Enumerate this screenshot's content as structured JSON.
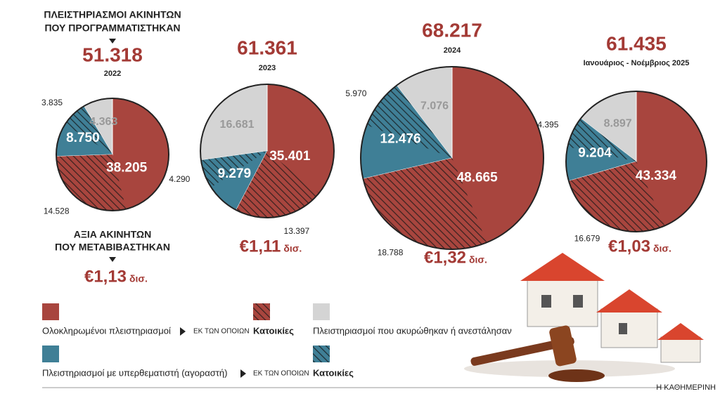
{
  "header": {
    "title_lines": [
      "ΠΛΕΙΣΤΗΡΙΑΣΜΟΙ ΑΚΙΝΗΤΩΝ",
      "ΠΟΥ ΠΡΟΓΡΑΜΜΑΤΙΣΤΗΚΑΝ"
    ],
    "value_lines": [
      "ΑΞΙΑ ΑΚΙΝΗΤΩΝ",
      "ΠΟΥ ΜΕΤΑΒΙΒΑΣΤΗΚΑΝ"
    ]
  },
  "chart_data": [
    {
      "type": "pie",
      "title": {
        "value": 51318,
        "label": "51.318"
      },
      "subtitle": "2022",
      "values": [
        38205,
        8750,
        4363
      ],
      "value_labels": [
        "38.205",
        "8.750",
        "4.363"
      ],
      "sub_values": [
        14528,
        3835
      ],
      "sub_value_labels": [
        "14.528",
        "3.835"
      ],
      "colors": [
        "#a8453e",
        "#3f7f96",
        "#d4d4d4"
      ],
      "amount": "€1,13",
      "amount_unit": "δισ."
    },
    {
      "type": "pie",
      "title": {
        "value": 61361,
        "label": "61.361"
      },
      "subtitle": "2023",
      "values": [
        35401,
        9279,
        16681
      ],
      "value_labels": [
        "35.401",
        "9.279",
        "16.681"
      ],
      "sub_values": [
        13397,
        4290
      ],
      "sub_value_labels": [
        "13.397",
        "4.290"
      ],
      "colors": [
        "#a8453e",
        "#3f7f96",
        "#d4d4d4"
      ],
      "amount": "€1,11",
      "amount_unit": "δισ."
    },
    {
      "type": "pie",
      "title": {
        "value": 68217,
        "label": "68.217"
      },
      "subtitle": "2024",
      "values": [
        48665,
        12476,
        7076
      ],
      "value_labels": [
        "48.665",
        "12.476",
        "7.076"
      ],
      "sub_values": [
        18788,
        5970
      ],
      "sub_value_labels": [
        "18.788",
        "5.970"
      ],
      "colors": [
        "#a8453e",
        "#3f7f96",
        "#d4d4d4"
      ],
      "amount": "€1,32",
      "amount_unit": "δισ."
    },
    {
      "type": "pie",
      "title": {
        "value": 61435,
        "label": "61.435"
      },
      "subtitle": "Ιανουάριος - Νοέμβριος 2025",
      "values": [
        43334,
        9204,
        8897
      ],
      "value_labels": [
        "43.334",
        "9.204",
        "8.897"
      ],
      "sub_values": [
        16679,
        4395
      ],
      "sub_value_labels": [
        "16.679",
        "4.395"
      ],
      "colors": [
        "#a8453e",
        "#3f7f96",
        "#d4d4d4"
      ],
      "amount": "€1,03",
      "amount_unit": "δισ."
    }
  ],
  "legend": {
    "completed": "Ολοκληρωμένοι πλειστηριασμοί",
    "of_which": "ΕΚ ΤΩΝ ΟΠΟΙΩΝ",
    "residential": "Κατοικίες",
    "cancelled": "Πλειστηριασμοί που ακυρώθηκαν ή ανεστάλησαν",
    "buyer": "Πλειστηριασμοί με υπερθεματιστή (αγοραστή)"
  },
  "footer": "Η ΚΑΘΗΜΕΡΙΝΗ"
}
